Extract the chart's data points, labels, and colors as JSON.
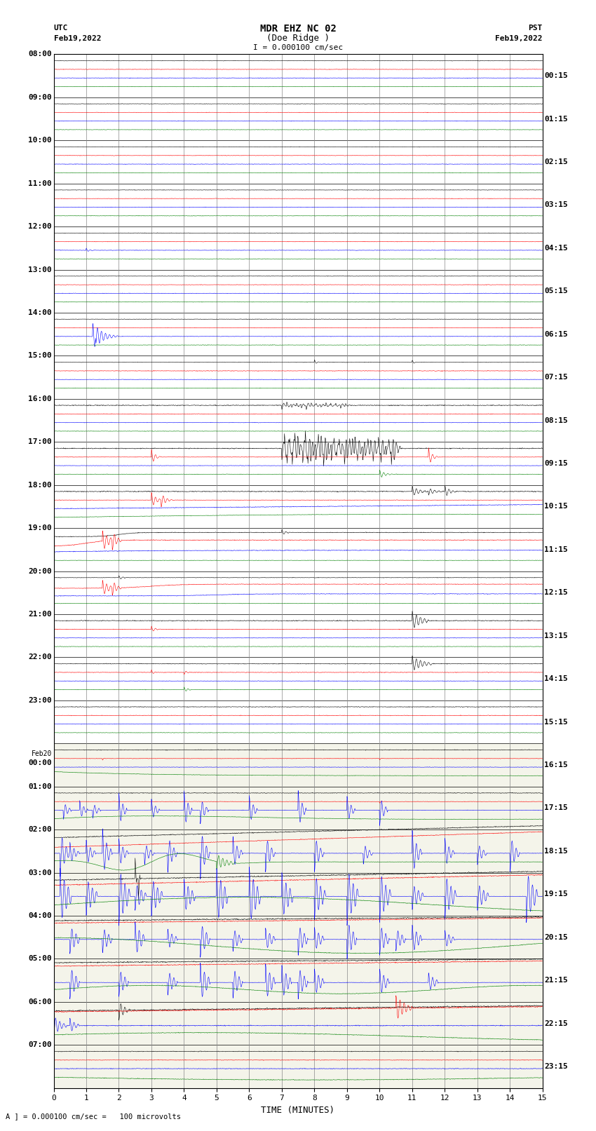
{
  "title_line1": "MDR EHZ NC 02",
  "title_line2": "(Doe Ridge )",
  "scale_label": "I = 0.000100 cm/sec",
  "xlabel": "TIME (MINUTES)",
  "footnote": "A ] = 0.000100 cm/sec =   100 microvolts",
  "left_times": [
    "08:00",
    "09:00",
    "10:00",
    "11:00",
    "12:00",
    "13:00",
    "14:00",
    "15:00",
    "16:00",
    "17:00",
    "18:00",
    "19:00",
    "20:00",
    "21:00",
    "22:00",
    "23:00",
    "Feb20\n00:00",
    "01:00",
    "02:00",
    "03:00",
    "04:00",
    "05:00",
    "06:00",
    "07:00"
  ],
  "right_times": [
    "00:15",
    "01:15",
    "02:15",
    "03:15",
    "04:15",
    "05:15",
    "06:15",
    "07:15",
    "08:15",
    "09:15",
    "10:15",
    "11:15",
    "12:15",
    "13:15",
    "14:15",
    "15:15",
    "16:15",
    "17:15",
    "18:15",
    "19:15",
    "20:15",
    "21:15",
    "22:15",
    "23:15"
  ],
  "n_rows": 24,
  "n_minutes": 15,
  "colors": [
    "black",
    "red",
    "blue",
    "green"
  ],
  "bg_color": "white",
  "bg_color_lower": "#f0f0e8",
  "grid_color_v": "#888888",
  "grid_color_h": "#000000",
  "figsize": [
    8.5,
    16.13
  ]
}
